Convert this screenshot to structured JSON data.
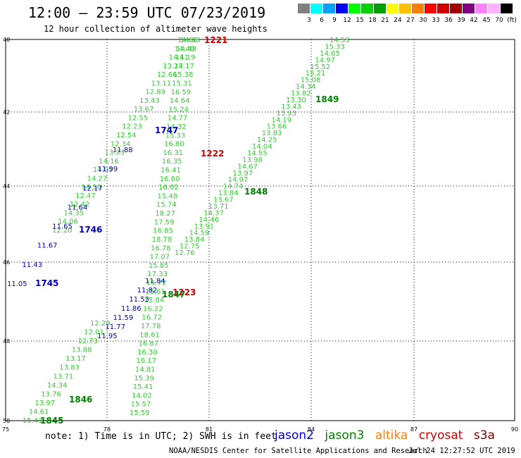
{
  "header": {
    "title": "12:00 – 23:59 UTC 07/23/2019",
    "subtitle": "12 hour collection of altimeter wave heights"
  },
  "colorbar": {
    "swatches": [
      "#808080",
      "#00ffff",
      "#00a0ff",
      "#0000ff",
      "#00ff00",
      "#00d000",
      "#00a000",
      "#ffff00",
      "#ffc000",
      "#ff8000",
      "#ff0000",
      "#d00000",
      "#a00000",
      "#800080",
      "#ff80ff",
      "#ffb0ff",
      "#000000"
    ],
    "labels": [
      "3",
      "6",
      "9",
      "12",
      "15",
      "18",
      "21",
      "24",
      "27",
      "30",
      "33",
      "36",
      "39",
      "42",
      "45",
      "70",
      "(ft)"
    ]
  },
  "axes": {
    "lat_labels": [
      "40",
      "42",
      "44",
      "46",
      "48",
      "50"
    ],
    "lon_labels": [
      "75",
      "78",
      "81",
      "84",
      "87",
      "90"
    ]
  },
  "colors": {
    "jason2": "#0000c0",
    "jason3": "#008000",
    "altika": "#ff8000",
    "cryosat": "#cc0000",
    "light_green": "#33cc33",
    "mid_green": "#009900"
  },
  "map_data": {
    "track_labels": [
      {
        "text": "1221",
        "sat": "cryosat"
      },
      {
        "text": "1222",
        "sat": "cryosat"
      },
      {
        "text": "1223",
        "sat": "cryosat"
      },
      {
        "text": "1745",
        "sat": "jason2"
      },
      {
        "text": "1746",
        "sat": "jason2"
      },
      {
        "text": "1747",
        "sat": "jason2"
      },
      {
        "text": "1845",
        "sat": "jason3"
      },
      {
        "text": "1846",
        "sat": "jason3"
      },
      {
        "text": "1847",
        "sat": "jason3"
      },
      {
        "text": "1848",
        "sat": "jason3"
      },
      {
        "text": "1849",
        "sat": "jason3"
      }
    ],
    "track_a": [
      "14.53",
      "15.33",
      "14.65",
      "14.97",
      "15.52",
      "15.21",
      "15.08",
      "14.34",
      "13.82",
      "13.30",
      "13.43",
      "13.93",
      "14.19",
      "13.66",
      "13.83",
      "14.25",
      "14.04",
      "14.55",
      "13.98",
      "14.67",
      "13.97",
      "14.97",
      "14.74",
      "13.84",
      "13.67",
      "13.71",
      "14.37",
      "14.46",
      "13.91",
      "14.59",
      "13.84",
      "12.75",
      "12.76"
    ],
    "track_b": [
      "14.86",
      "14.48",
      "14.19",
      "14.17",
      "15.38",
      "15.31",
      "16.59",
      "14.64",
      "15.24",
      "14.77",
      "14.32",
      "15.33",
      "16.80",
      "16.31",
      "16.35",
      "16.41",
      "16.60",
      "16.02",
      "15.48",
      "15.74",
      "18.27",
      "17.59",
      "16.85",
      "18.78",
      "16.78",
      "17.07",
      "15.85",
      "17.33",
      "15.72",
      "15.61",
      "15.84",
      "16.22",
      "16.72",
      "17.78",
      "18.61",
      "16.87",
      "16.30",
      "16.17",
      "14.81",
      "15.39",
      "15.41",
      "14.02",
      "15.57",
      "15.59"
    ],
    "track_c": [
      "14.93",
      "14.40",
      "14.11",
      "13.27",
      "12.66",
      "13.11",
      "12.89",
      "13.43",
      "13.67",
      "12.55",
      "12.23",
      "12.54",
      "12.34",
      "13.23",
      "14.16",
      "14.05",
      "14.27",
      "14.50",
      "12.47",
      "12.42",
      "14.35",
      "14.06",
      "12.20"
    ],
    "jason2_a": [
      "11.88",
      "11.99",
      "12.17",
      "11.64",
      "11.65",
      "11.67",
      "11.43",
      "11.05"
    ],
    "jason2_b": [
      "11.84",
      "11.82",
      "11.53",
      "11.86",
      "11.59",
      "11.77",
      "11.95"
    ],
    "track_d": [
      "12.29",
      "12.01",
      "12.73",
      "13.88",
      "13.17",
      "13.83",
      "13.71",
      "14.34",
      "13.76",
      "13.97",
      "14.61",
      "15.43"
    ]
  },
  "footer": {
    "note": "note: 1) Time is in UTC; 2) SWH is in feet",
    "legend": [
      "jason2",
      "jason3",
      "altika",
      "cryosat",
      "s3a"
    ],
    "credit": "NOAA/NESDIS Center for Satellite Applications and Research",
    "timestamp": "Jul 24 12:27:52 UTC 2019"
  }
}
